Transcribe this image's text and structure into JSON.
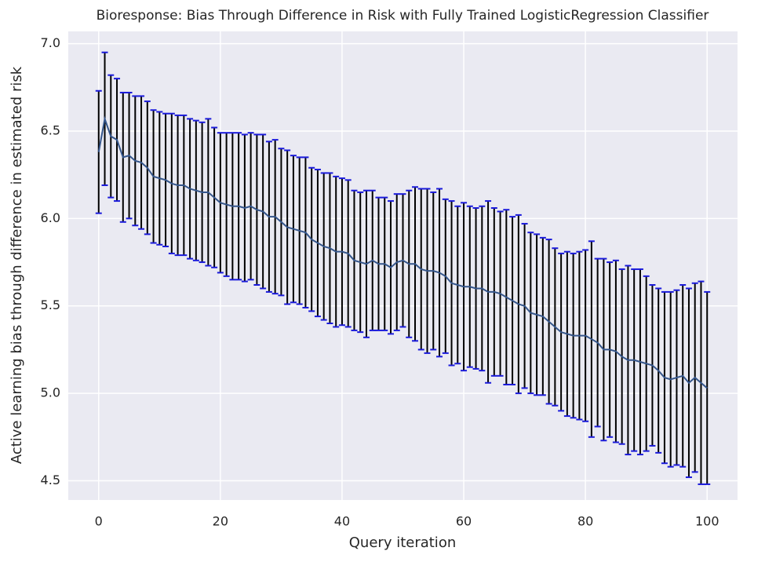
{
  "chart_data": {
    "type": "errorbar",
    "title": "Bioresponse: Bias Through Difference in Risk with Fully Trained LogisticRegression Classifier",
    "xlabel": "Query iteration",
    "ylabel": "Active learning bias through difference in estimated risk",
    "x": [
      0,
      1,
      2,
      3,
      4,
      5,
      6,
      7,
      8,
      9,
      10,
      11,
      12,
      13,
      14,
      15,
      16,
      17,
      18,
      19,
      20,
      21,
      22,
      23,
      24,
      25,
      26,
      27,
      28,
      29,
      30,
      31,
      32,
      33,
      34,
      35,
      36,
      37,
      38,
      39,
      40,
      41,
      42,
      43,
      44,
      45,
      46,
      47,
      48,
      49,
      50,
      51,
      52,
      53,
      54,
      55,
      56,
      57,
      58,
      59,
      60,
      61,
      62,
      63,
      64,
      65,
      66,
      67,
      68,
      69,
      70,
      71,
      72,
      73,
      74,
      75,
      76,
      77,
      78,
      79,
      80,
      81,
      82,
      83,
      84,
      85,
      86,
      87,
      88,
      89,
      90,
      91,
      92,
      93,
      94,
      95,
      96,
      97,
      98,
      99,
      100
    ],
    "values": [
      6.38,
      6.57,
      6.47,
      6.45,
      6.35,
      6.36,
      6.33,
      6.32,
      6.29,
      6.24,
      6.23,
      6.22,
      6.2,
      6.19,
      6.19,
      6.17,
      6.16,
      6.15,
      6.15,
      6.12,
      6.09,
      6.08,
      6.07,
      6.07,
      6.06,
      6.07,
      6.05,
      6.04,
      6.01,
      6.01,
      5.98,
      5.95,
      5.94,
      5.93,
      5.92,
      5.88,
      5.86,
      5.84,
      5.83,
      5.81,
      5.81,
      5.8,
      5.76,
      5.75,
      5.74,
      5.76,
      5.74,
      5.74,
      5.72,
      5.75,
      5.76,
      5.74,
      5.74,
      5.71,
      5.7,
      5.7,
      5.69,
      5.67,
      5.63,
      5.62,
      5.61,
      5.61,
      5.6,
      5.6,
      5.58,
      5.58,
      5.57,
      5.55,
      5.53,
      5.51,
      5.5,
      5.46,
      5.45,
      5.44,
      5.41,
      5.38,
      5.35,
      5.34,
      5.33,
      5.33,
      5.33,
      5.31,
      5.29,
      5.25,
      5.25,
      5.24,
      5.21,
      5.19,
      5.19,
      5.18,
      5.17,
      5.16,
      5.13,
      5.09,
      5.08,
      5.09,
      5.1,
      5.06,
      5.09,
      5.06,
      5.03
    ],
    "errors": [
      0.35,
      0.38,
      0.35,
      0.35,
      0.37,
      0.36,
      0.37,
      0.38,
      0.38,
      0.38,
      0.38,
      0.38,
      0.4,
      0.4,
      0.4,
      0.4,
      0.4,
      0.4,
      0.42,
      0.4,
      0.4,
      0.41,
      0.42,
      0.42,
      0.42,
      0.42,
      0.43,
      0.44,
      0.43,
      0.44,
      0.42,
      0.44,
      0.42,
      0.42,
      0.43,
      0.41,
      0.42,
      0.42,
      0.43,
      0.43,
      0.42,
      0.42,
      0.4,
      0.4,
      0.42,
      0.4,
      0.38,
      0.38,
      0.38,
      0.39,
      0.38,
      0.42,
      0.44,
      0.46,
      0.47,
      0.45,
      0.48,
      0.44,
      0.47,
      0.45,
      0.48,
      0.46,
      0.46,
      0.47,
      0.52,
      0.48,
      0.47,
      0.5,
      0.48,
      0.51,
      0.47,
      0.46,
      0.46,
      0.45,
      0.47,
      0.45,
      0.45,
      0.47,
      0.47,
      0.48,
      0.49,
      0.56,
      0.48,
      0.52,
      0.5,
      0.52,
      0.5,
      0.54,
      0.52,
      0.53,
      0.5,
      0.46,
      0.47,
      0.49,
      0.5,
      0.5,
      0.52,
      0.54,
      0.54,
      0.58,
      0.55
    ],
    "color": "#34558b",
    "errorbar_color": "#000000",
    "cap_color": "#1a1adb",
    "xlim": [
      -5,
      105
    ],
    "ylim": [
      4.39,
      7.07
    ],
    "xticks": [
      0,
      20,
      40,
      60,
      80,
      100
    ],
    "yticks": [
      4.5,
      {
        "value": 5,
        "label": "5.0"
      },
      5.5,
      {
        "value": 6,
        "label": "6.0"
      },
      6.5,
      {
        "value": 7,
        "label": "7.0"
      }
    ],
    "grid": true
  }
}
